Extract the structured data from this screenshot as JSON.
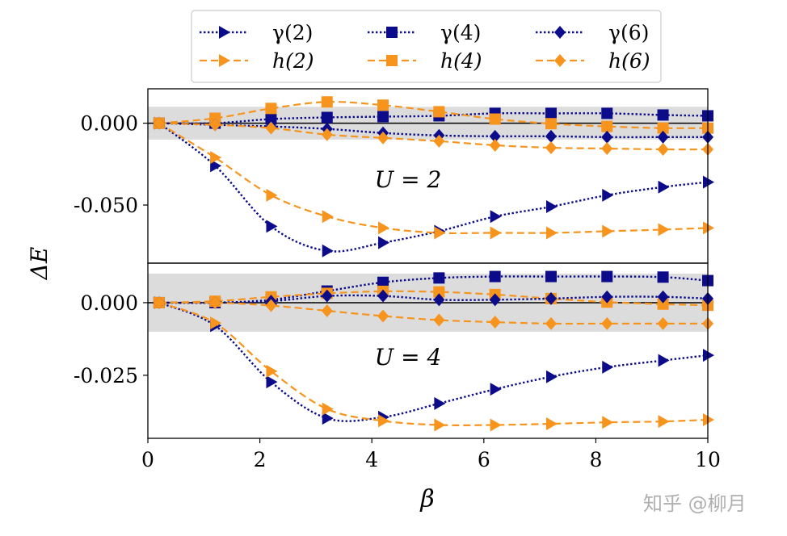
{
  "chart_data": {
    "type": "line",
    "xlabel": "β",
    "ylabel": "ΔE",
    "xlim": [
      0,
      10
    ],
    "xticks": [
      "0",
      "2",
      "4",
      "6",
      "8",
      "10"
    ],
    "x": [
      0.2,
      1.2,
      2.2,
      3.2,
      4.2,
      5.2,
      6.2,
      7.2,
      8.2,
      9.2,
      10
    ],
    "legend": {
      "placement": "top-center, above plot",
      "columns": 3
    },
    "styles": {
      "γ(2)": {
        "color": "#0c0c8a",
        "line": "dotted",
        "marker": "triangle-right"
      },
      "h(2)": {
        "color": "#f7941d",
        "line": "dashed",
        "marker": "triangle-right"
      },
      "γ(4)": {
        "color": "#0c0c8a",
        "line": "dotted",
        "marker": "square"
      },
      "h(4)": {
        "color": "#f7941d",
        "line": "dashed",
        "marker": "square"
      },
      "γ(6)": {
        "color": "#0c0c8a",
        "line": "dotted",
        "marker": "diamond"
      },
      "h(6)": {
        "color": "#f7941d",
        "line": "dashed",
        "marker": "diamond"
      }
    },
    "panels": [
      {
        "annotation": "U = 2",
        "ylim": [
          -0.0855,
          0.021
        ],
        "yticks": [
          {
            "value": -0.05,
            "label": "-0.050"
          },
          {
            "value": 0,
            "label": "0.000"
          }
        ],
        "band": [
          -0.01,
          0.01
        ],
        "band_color": "#dcdcdc",
        "series": [
          {
            "name": "γ(2)",
            "values": [
              0,
              -0.026,
              -0.063,
              -0.078,
              -0.073,
              -0.066,
              -0.057,
              -0.051,
              -0.044,
              -0.039,
              -0.036
            ]
          },
          {
            "name": "h(2)",
            "values": [
              0,
              -0.021,
              -0.044,
              -0.057,
              -0.064,
              -0.067,
              -0.067,
              -0.067,
              -0.066,
              -0.065,
              -0.064
            ]
          },
          {
            "name": "γ(4)",
            "values": [
              0,
              0,
              0.0025,
              0.0035,
              0.004,
              0.0045,
              0.006,
              0.006,
              0.006,
              0.005,
              0.0045
            ]
          },
          {
            "name": "h(4)",
            "values": [
              0,
              0.003,
              0.009,
              0.013,
              0.011,
              0.007,
              0.0025,
              -0.0003,
              -0.002,
              -0.003,
              -0.003
            ]
          },
          {
            "name": "γ(6)",
            "values": [
              0,
              -0.001,
              -0.002,
              -0.0035,
              -0.006,
              -0.0075,
              -0.008,
              -0.008,
              -0.0085,
              -0.0085,
              -0.0085
            ]
          },
          {
            "name": "h(6)",
            "values": [
              0,
              -0.001,
              -0.003,
              -0.007,
              -0.009,
              -0.011,
              -0.0135,
              -0.015,
              -0.0155,
              -0.016,
              -0.016
            ]
          }
        ]
      },
      {
        "annotation": "U = 4",
        "ylim": [
          -0.0467,
          0.0136
        ],
        "yticks": [
          {
            "value": -0.025,
            "label": "-0.025"
          },
          {
            "value": 0,
            "label": "0.000"
          }
        ],
        "band": [
          -0.01,
          0.01
        ],
        "band_color": "#dcdcdc",
        "series": [
          {
            "name": "γ(2)",
            "values": [
              0,
              -0.0079,
              -0.0273,
              -0.0398,
              -0.0394,
              -0.0347,
              -0.0298,
              -0.0255,
              -0.0222,
              -0.0199,
              -0.0181
            ]
          },
          {
            "name": "h(2)",
            "values": [
              0,
              -0.007,
              -0.0236,
              -0.0366,
              -0.0407,
              -0.0421,
              -0.0421,
              -0.0417,
              -0.0412,
              -0.0409,
              -0.0403
            ]
          },
          {
            "name": "γ(4)",
            "values": [
              0,
              0,
              0.001,
              0.004,
              0.007,
              0.0085,
              0.009,
              0.009,
              0.009,
              0.0088,
              0.0076
            ]
          },
          {
            "name": "h(4)",
            "values": [
              0,
              0.0005,
              0.002,
              0.0032,
              0.0039,
              0.0037,
              0.0028,
              0.0014,
              0.0002,
              -0.0005,
              -0.0009
            ]
          },
          {
            "name": "γ(6)",
            "values": [
              0,
              0,
              0.0005,
              0.0023,
              0.0023,
              0.001,
              0.001,
              0.0014,
              0.002,
              0.002,
              0.0014
            ]
          },
          {
            "name": "h(6)",
            "values": [
              0,
              0,
              -0.001,
              -0.0028,
              -0.0046,
              -0.006,
              -0.0067,
              -0.0072,
              -0.0072,
              -0.0072,
              -0.0072
            ]
          }
        ]
      }
    ]
  },
  "watermark": "知乎 @柳月"
}
